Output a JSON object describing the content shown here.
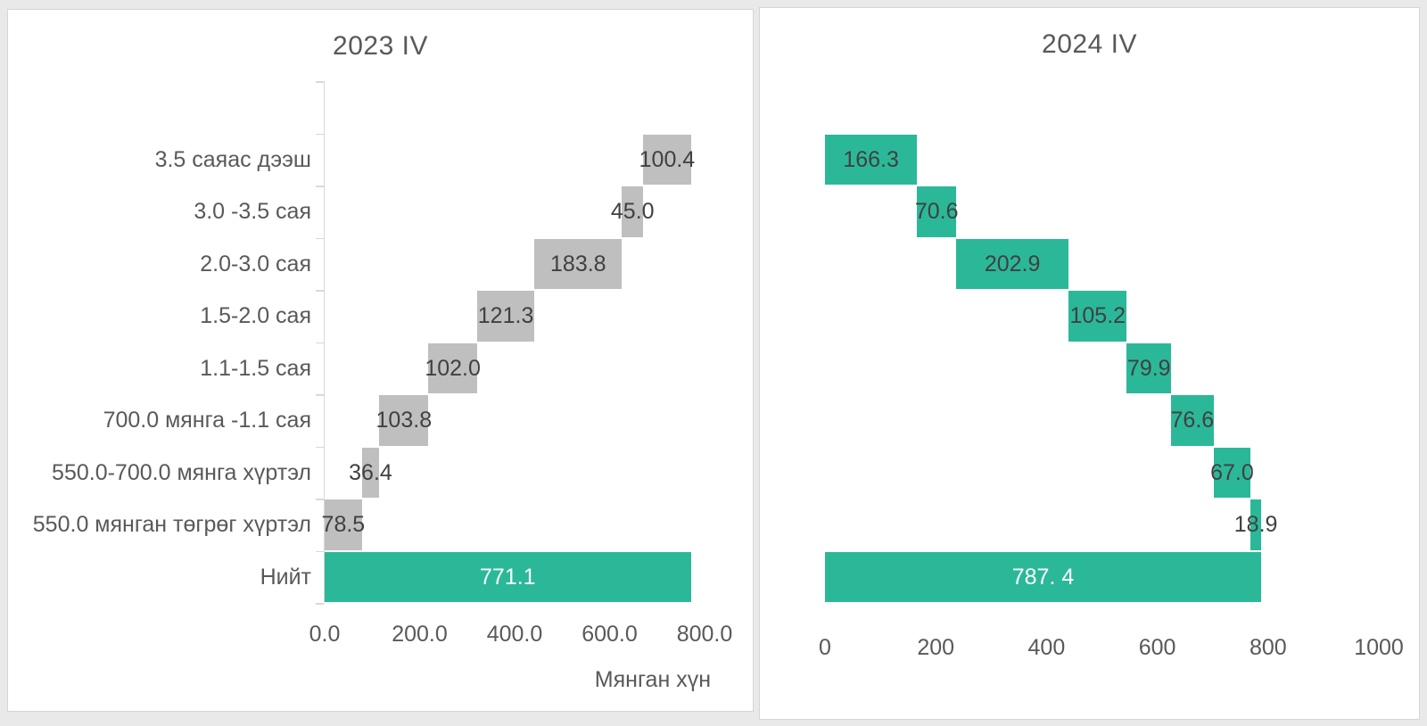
{
  "page": {
    "background": "#e9e9e9",
    "card_background": "#ffffff",
    "card_border": "#d5d5d5"
  },
  "colors": {
    "segment_gray": "#bfbfbf",
    "accent_teal": "#2bb899",
    "title_text": "#595959",
    "axis_text": "#595959",
    "value_text": "#404040",
    "value_text_on_total": "#ffffff",
    "axis_line": "#d9d9d9"
  },
  "chart_data": [
    {
      "type": "bar",
      "subtype": "waterfall",
      "orientation": "horizontal",
      "title": "2023 IV",
      "xlabel": "Мянган хүн",
      "xlim": [
        0,
        800
      ],
      "grid": false,
      "legend": false,
      "segment_color": "#bfbfbf",
      "total_color": "#2bb899",
      "x_ticks": [
        {
          "label": "0.0",
          "value": 0
        },
        {
          "label": "200.0",
          "value": 200
        },
        {
          "label": "400.0",
          "value": 400
        },
        {
          "label": "600.0",
          "value": 600
        },
        {
          "label": "800.0",
          "value": 800
        }
      ],
      "categories": [
        "3.5 саяас дээш",
        "3.0 -3.5 сая",
        "2.0-3.0 сая",
        "1.5-2.0 сая",
        "1.1-1.5 сая",
        "700.0 мянга -1.1 сая",
        "550.0-700.0 мянга хүртэл",
        "550.0 мянган төгрөг хүртэл",
        "Нийт"
      ],
      "segments": [
        {
          "category": "3.5 саяас дээш",
          "label": "100.4",
          "value": 100.4,
          "start": 670.8,
          "is_total": false
        },
        {
          "category": "3.0 -3.5 сая",
          "label": "45.0",
          "value": 45.0,
          "start": 625.8,
          "is_total": false
        },
        {
          "category": "2.0-3.0 сая",
          "label": "183.8",
          "value": 183.8,
          "start": 442.0,
          "is_total": false
        },
        {
          "category": "1.5-2.0 сая",
          "label": "121.3",
          "value": 121.3,
          "start": 320.7,
          "is_total": false
        },
        {
          "category": "1.1-1.5 сая",
          "label": "102.0",
          "value": 102.0,
          "start": 218.7,
          "is_total": false
        },
        {
          "category": "700.0 мянга -1.1 сая",
          "label": "103.8",
          "value": 103.8,
          "start": 114.9,
          "is_total": false
        },
        {
          "category": "550.0-700.0 мянга хүртэл",
          "label": "36.4",
          "value": 36.4,
          "start": 78.5,
          "is_total": false
        },
        {
          "category": "550.0 мянган төгрөг хүртэл",
          "label": "78.5",
          "value": 78.5,
          "start": 0,
          "is_total": false
        },
        {
          "category": "Нийт",
          "label": "771.1",
          "value": 771.1,
          "start": 0,
          "is_total": true
        }
      ],
      "total": 771.1
    },
    {
      "type": "bar",
      "subtype": "waterfall",
      "orientation": "horizontal",
      "title": "2024 IV",
      "xlabel": "",
      "xlim": [
        0,
        1000
      ],
      "grid": false,
      "legend": false,
      "segment_color": "#2bb899",
      "total_color": "#2bb899",
      "x_ticks": [
        {
          "label": "0",
          "value": 0
        },
        {
          "label": "200",
          "value": 200
        },
        {
          "label": "400",
          "value": 400
        },
        {
          "label": "600",
          "value": 600
        },
        {
          "label": "800",
          "value": 800
        },
        {
          "label": "1000",
          "value": 1000
        }
      ],
      "categories": [],
      "segments": [
        {
          "category": "",
          "label": "166.3",
          "value": 166.3,
          "start": 0,
          "is_total": false
        },
        {
          "category": "",
          "label": "70.6",
          "value": 70.6,
          "start": 166.3,
          "is_total": false
        },
        {
          "category": "",
          "label": "202.9",
          "value": 202.9,
          "start": 236.9,
          "is_total": false
        },
        {
          "category": "",
          "label": "105.2",
          "value": 105.2,
          "start": 439.8,
          "is_total": false
        },
        {
          "category": "",
          "label": "79.9",
          "value": 79.9,
          "start": 545.0,
          "is_total": false
        },
        {
          "category": "",
          "label": "76.6",
          "value": 76.6,
          "start": 624.9,
          "is_total": false
        },
        {
          "category": "",
          "label": "67.0",
          "value": 67.0,
          "start": 701.5,
          "is_total": false
        },
        {
          "category": "",
          "label": "18.9",
          "value": 18.9,
          "start": 768.5,
          "is_total": false
        },
        {
          "category": "",
          "label": "787. 4",
          "value": 787.4,
          "start": 0,
          "is_total": true
        }
      ],
      "total": 787.4
    }
  ]
}
